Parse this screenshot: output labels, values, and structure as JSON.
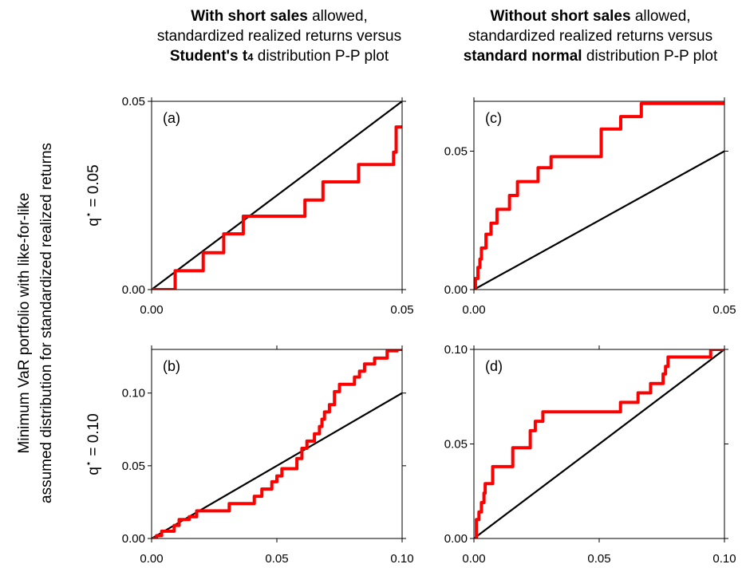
{
  "titles": {
    "left": {
      "bold1": "With short sales",
      "rest1": " allowed,",
      "line2": "standardized realized returns versus",
      "bold3": "Student's t",
      "sub3": "4",
      "rest3": " distribution P-P plot"
    },
    "right": {
      "bold1": "Without short sales",
      "rest1": " allowed,",
      "line2": "standardized realized returns versus",
      "bold3": "standard normal",
      "rest3": " distribution P-P plot"
    }
  },
  "y_axis_title": {
    "line1": "Minimum VaR portfolio with like-for-like",
    "line2": "assumed distribution for standardized realized returns"
  },
  "row_labels": [
    {
      "prefix": "q",
      "star": "⋆",
      "suffix": " = 0.05"
    },
    {
      "prefix": "q",
      "star": "⋆",
      "suffix": " = 0.10"
    }
  ],
  "colors": {
    "series": "#ff0000",
    "reference": "#000000"
  },
  "chart_data": [
    {
      "type": "line",
      "panel_label": "(a)",
      "xlim": [
        0,
        0.05
      ],
      "ylim": [
        0,
        0.05
      ],
      "xticks": [
        "0.00",
        "0.05"
      ],
      "yticks": [
        "0.00",
        "0.05"
      ],
      "reference_line": [
        [
          0,
          0
        ],
        [
          0.05,
          0.05
        ]
      ],
      "series": [
        {
          "points": [
            [
              0,
              0
            ],
            [
              0.0047,
              0
            ],
            [
              0.0047,
              0.005
            ],
            [
              0.0103,
              0.005
            ],
            [
              0.0103,
              0.0098
            ],
            [
              0.0144,
              0.0098
            ],
            [
              0.0144,
              0.0148
            ],
            [
              0.0183,
              0.0148
            ],
            [
              0.0183,
              0.0195
            ],
            [
              0.0306,
              0.0195
            ],
            [
              0.0306,
              0.0238
            ],
            [
              0.0342,
              0.0238
            ],
            [
              0.0342,
              0.0286
            ],
            [
              0.0413,
              0.0286
            ],
            [
              0.0413,
              0.0332
            ],
            [
              0.0483,
              0.0332
            ],
            [
              0.0483,
              0.0365
            ],
            [
              0.0488,
              0.0365
            ],
            [
              0.0488,
              0.0432
            ],
            [
              0.05,
              0.0432
            ]
          ]
        }
      ]
    },
    {
      "type": "line",
      "panel_label": "(c)",
      "xlim": [
        0,
        0.05
      ],
      "ylim": [
        0,
        0.068
      ],
      "xticks": [
        "0.00",
        "0.05"
      ],
      "yticks": [
        "0.00",
        "0.05"
      ],
      "reference_line": [
        [
          0,
          0
        ],
        [
          0.05,
          0.05
        ]
      ],
      "series": [
        {
          "points": [
            [
              0,
              0
            ],
            [
              0.0003,
              0
            ],
            [
              0.0003,
              0.004
            ],
            [
              0.0008,
              0.004
            ],
            [
              0.0008,
              0.008
            ],
            [
              0.0012,
              0.008
            ],
            [
              0.0012,
              0.011
            ],
            [
              0.0015,
              0.011
            ],
            [
              0.0015,
              0.015
            ],
            [
              0.0024,
              0.015
            ],
            [
              0.0024,
              0.02
            ],
            [
              0.0034,
              0.02
            ],
            [
              0.0034,
              0.024
            ],
            [
              0.0046,
              0.024
            ],
            [
              0.0046,
              0.029
            ],
            [
              0.0071,
              0.029
            ],
            [
              0.0071,
              0.034
            ],
            [
              0.0087,
              0.034
            ],
            [
              0.0087,
              0.039
            ],
            [
              0.0128,
              0.039
            ],
            [
              0.0128,
              0.044
            ],
            [
              0.0154,
              0.044
            ],
            [
              0.0154,
              0.048
            ],
            [
              0.0254,
              0.048
            ],
            [
              0.0254,
              0.058
            ],
            [
              0.0293,
              0.058
            ],
            [
              0.0293,
              0.0625
            ],
            [
              0.0334,
              0.0625
            ],
            [
              0.0334,
              0.0672
            ],
            [
              0.05,
              0.0672
            ]
          ]
        }
      ]
    },
    {
      "type": "line",
      "panel_label": "(b)",
      "xlim": [
        0,
        0.1
      ],
      "ylim": [
        0,
        0.13
      ],
      "xticks": [
        "0.00",
        "0.05",
        "0.10"
      ],
      "yticks": [
        "0.00",
        "0.05",
        "0.10"
      ],
      "reference_line": [
        [
          0,
          0
        ],
        [
          0.1,
          0.1
        ]
      ],
      "series": [
        {
          "points": [
            [
              0,
              0
            ],
            [
              0.002,
              0
            ],
            [
              0.002,
              0.002
            ],
            [
              0.004,
              0.002
            ],
            [
              0.004,
              0.005
            ],
            [
              0.009,
              0.005
            ],
            [
              0.009,
              0.009
            ],
            [
              0.011,
              0.009
            ],
            [
              0.011,
              0.013
            ],
            [
              0.015,
              0.013
            ],
            [
              0.015,
              0.015
            ],
            [
              0.018,
              0.015
            ],
            [
              0.018,
              0.019
            ],
            [
              0.031,
              0.019
            ],
            [
              0.031,
              0.024
            ],
            [
              0.041,
              0.024
            ],
            [
              0.041,
              0.029
            ],
            [
              0.044,
              0.029
            ],
            [
              0.044,
              0.034
            ],
            [
              0.048,
              0.034
            ],
            [
              0.048,
              0.039
            ],
            [
              0.05,
              0.039
            ],
            [
              0.05,
              0.043
            ],
            [
              0.052,
              0.043
            ],
            [
              0.052,
              0.048
            ],
            [
              0.058,
              0.048
            ],
            [
              0.058,
              0.055
            ],
            [
              0.06,
              0.055
            ],
            [
              0.06,
              0.062
            ],
            [
              0.062,
              0.062
            ],
            [
              0.062,
              0.067
            ],
            [
              0.065,
              0.067
            ],
            [
              0.065,
              0.072
            ],
            [
              0.067,
              0.072
            ],
            [
              0.067,
              0.077
            ],
            [
              0.068,
              0.077
            ],
            [
              0.068,
              0.082
            ],
            [
              0.069,
              0.082
            ],
            [
              0.069,
              0.087
            ],
            [
              0.071,
              0.087
            ],
            [
              0.071,
              0.092
            ],
            [
              0.073,
              0.092
            ],
            [
              0.073,
              0.101
            ],
            [
              0.075,
              0.101
            ],
            [
              0.075,
              0.106
            ],
            [
              0.081,
              0.106
            ],
            [
              0.081,
              0.111
            ],
            [
              0.083,
              0.111
            ],
            [
              0.083,
              0.115
            ],
            [
              0.085,
              0.115
            ],
            [
              0.085,
              0.12
            ],
            [
              0.089,
              0.12
            ],
            [
              0.089,
              0.124
            ],
            [
              0.094,
              0.124
            ],
            [
              0.094,
              0.129
            ],
            [
              0.098,
              0.129
            ],
            [
              0.098,
              0.13
            ],
            [
              0.1,
              0.13
            ]
          ]
        }
      ]
    },
    {
      "type": "line",
      "panel_label": "(d)",
      "xlim": [
        0,
        0.1
      ],
      "ylim": [
        0,
        0.1
      ],
      "xticks": [
        "0.00",
        "0.05",
        "0.10"
      ],
      "yticks": [
        "0.00",
        "0.05",
        "0.10"
      ],
      "reference_line": [
        [
          0,
          0
        ],
        [
          0.1,
          0.1
        ]
      ],
      "series": [
        {
          "points": [
            [
              0,
              0
            ],
            [
              0.001,
              0
            ],
            [
              0.001,
              0.01
            ],
            [
              0.002,
              0.01
            ],
            [
              0.002,
              0.014
            ],
            [
              0.003,
              0.014
            ],
            [
              0.003,
              0.019
            ],
            [
              0.004,
              0.019
            ],
            [
              0.004,
              0.024
            ],
            [
              0.0045,
              0.024
            ],
            [
              0.0045,
              0.029
            ],
            [
              0.0075,
              0.029
            ],
            [
              0.0075,
              0.038
            ],
            [
              0.0155,
              0.038
            ],
            [
              0.0155,
              0.048
            ],
            [
              0.0225,
              0.048
            ],
            [
              0.0225,
              0.057
            ],
            [
              0.0245,
              0.057
            ],
            [
              0.0245,
              0.062
            ],
            [
              0.0275,
              0.062
            ],
            [
              0.0275,
              0.067
            ],
            [
              0.0585,
              0.067
            ],
            [
              0.0585,
              0.072
            ],
            [
              0.0655,
              0.072
            ],
            [
              0.0655,
              0.077
            ],
            [
              0.0705,
              0.077
            ],
            [
              0.0705,
              0.082
            ],
            [
              0.0755,
              0.082
            ],
            [
              0.0755,
              0.087
            ],
            [
              0.0765,
              0.087
            ],
            [
              0.0765,
              0.091
            ],
            [
              0.0775,
              0.091
            ],
            [
              0.0775,
              0.096
            ],
            [
              0.0945,
              0.096
            ],
            [
              0.0945,
              0.1
            ],
            [
              0.1,
              0.1
            ]
          ]
        }
      ]
    }
  ]
}
